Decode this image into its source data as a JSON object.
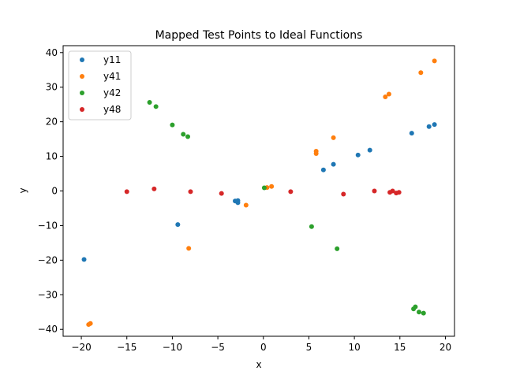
{
  "chart_data": {
    "type": "scatter",
    "title": "Mapped Test Points to Ideal Functions",
    "xlabel": "x",
    "ylabel": "y",
    "xlim": [
      -22,
      21
    ],
    "ylim": [
      -42,
      42
    ],
    "xticks": [
      -20,
      -15,
      -10,
      -5,
      0,
      5,
      10,
      15,
      20
    ],
    "yticks": [
      -40,
      -30,
      -20,
      -10,
      0,
      10,
      20,
      30,
      40
    ],
    "xtick_labels": [
      "−20",
      "−15",
      "−10",
      "−5",
      "0",
      "5",
      "10",
      "15",
      "20"
    ],
    "ytick_labels": [
      "−40",
      "−30",
      "−20",
      "−10",
      "0",
      "10",
      "20",
      "30",
      "40"
    ],
    "grid": false,
    "legend_position": "top-left",
    "series": [
      {
        "name": "y11",
        "color": "#1f77b4",
        "points": [
          [
            -19.7,
            -19.8
          ],
          [
            -9.4,
            -9.7
          ],
          [
            -3.1,
            -2.9
          ],
          [
            -2.8,
            -2.8
          ],
          [
            -2.8,
            -3.4
          ],
          [
            6.6,
            6.1
          ],
          [
            7.7,
            7.7
          ],
          [
            10.4,
            10.4
          ],
          [
            11.7,
            11.8
          ],
          [
            16.3,
            16.7
          ],
          [
            18.2,
            18.6
          ],
          [
            18.8,
            19.2
          ]
        ]
      },
      {
        "name": "y41",
        "color": "#ff7f0e",
        "points": [
          [
            -19.2,
            -38.6
          ],
          [
            -19.0,
            -38.3
          ],
          [
            -8.2,
            -16.6
          ],
          [
            -1.9,
            -4.1
          ],
          [
            0.4,
            1.0
          ],
          [
            0.9,
            1.3
          ],
          [
            5.8,
            11.5
          ],
          [
            5.8,
            10.8
          ],
          [
            7.7,
            15.4
          ],
          [
            13.4,
            27.2
          ],
          [
            13.8,
            28.0
          ],
          [
            17.3,
            34.2
          ],
          [
            18.8,
            37.6
          ]
        ]
      },
      {
        "name": "y42",
        "color": "#2ca02c",
        "points": [
          [
            -12.5,
            25.6
          ],
          [
            -11.8,
            24.4
          ],
          [
            -10.0,
            19.1
          ],
          [
            -8.8,
            16.4
          ],
          [
            -8.3,
            15.7
          ],
          [
            0.1,
            0.9
          ],
          [
            5.3,
            -10.3
          ],
          [
            8.1,
            -16.7
          ],
          [
            16.5,
            -34.1
          ],
          [
            16.7,
            -33.5
          ],
          [
            17.1,
            -35.0
          ],
          [
            17.6,
            -35.3
          ]
        ]
      },
      {
        "name": "y48",
        "color": "#d62728",
        "points": [
          [
            -15.0,
            -0.2
          ],
          [
            -12.0,
            0.6
          ],
          [
            -8.0,
            -0.2
          ],
          [
            -4.6,
            -0.7
          ],
          [
            3.0,
            -0.2
          ],
          [
            8.8,
            -0.9
          ],
          [
            12.2,
            0.0
          ],
          [
            13.9,
            -0.4
          ],
          [
            14.2,
            0.0
          ],
          [
            14.6,
            -0.6
          ],
          [
            14.9,
            -0.4
          ]
        ]
      }
    ]
  }
}
